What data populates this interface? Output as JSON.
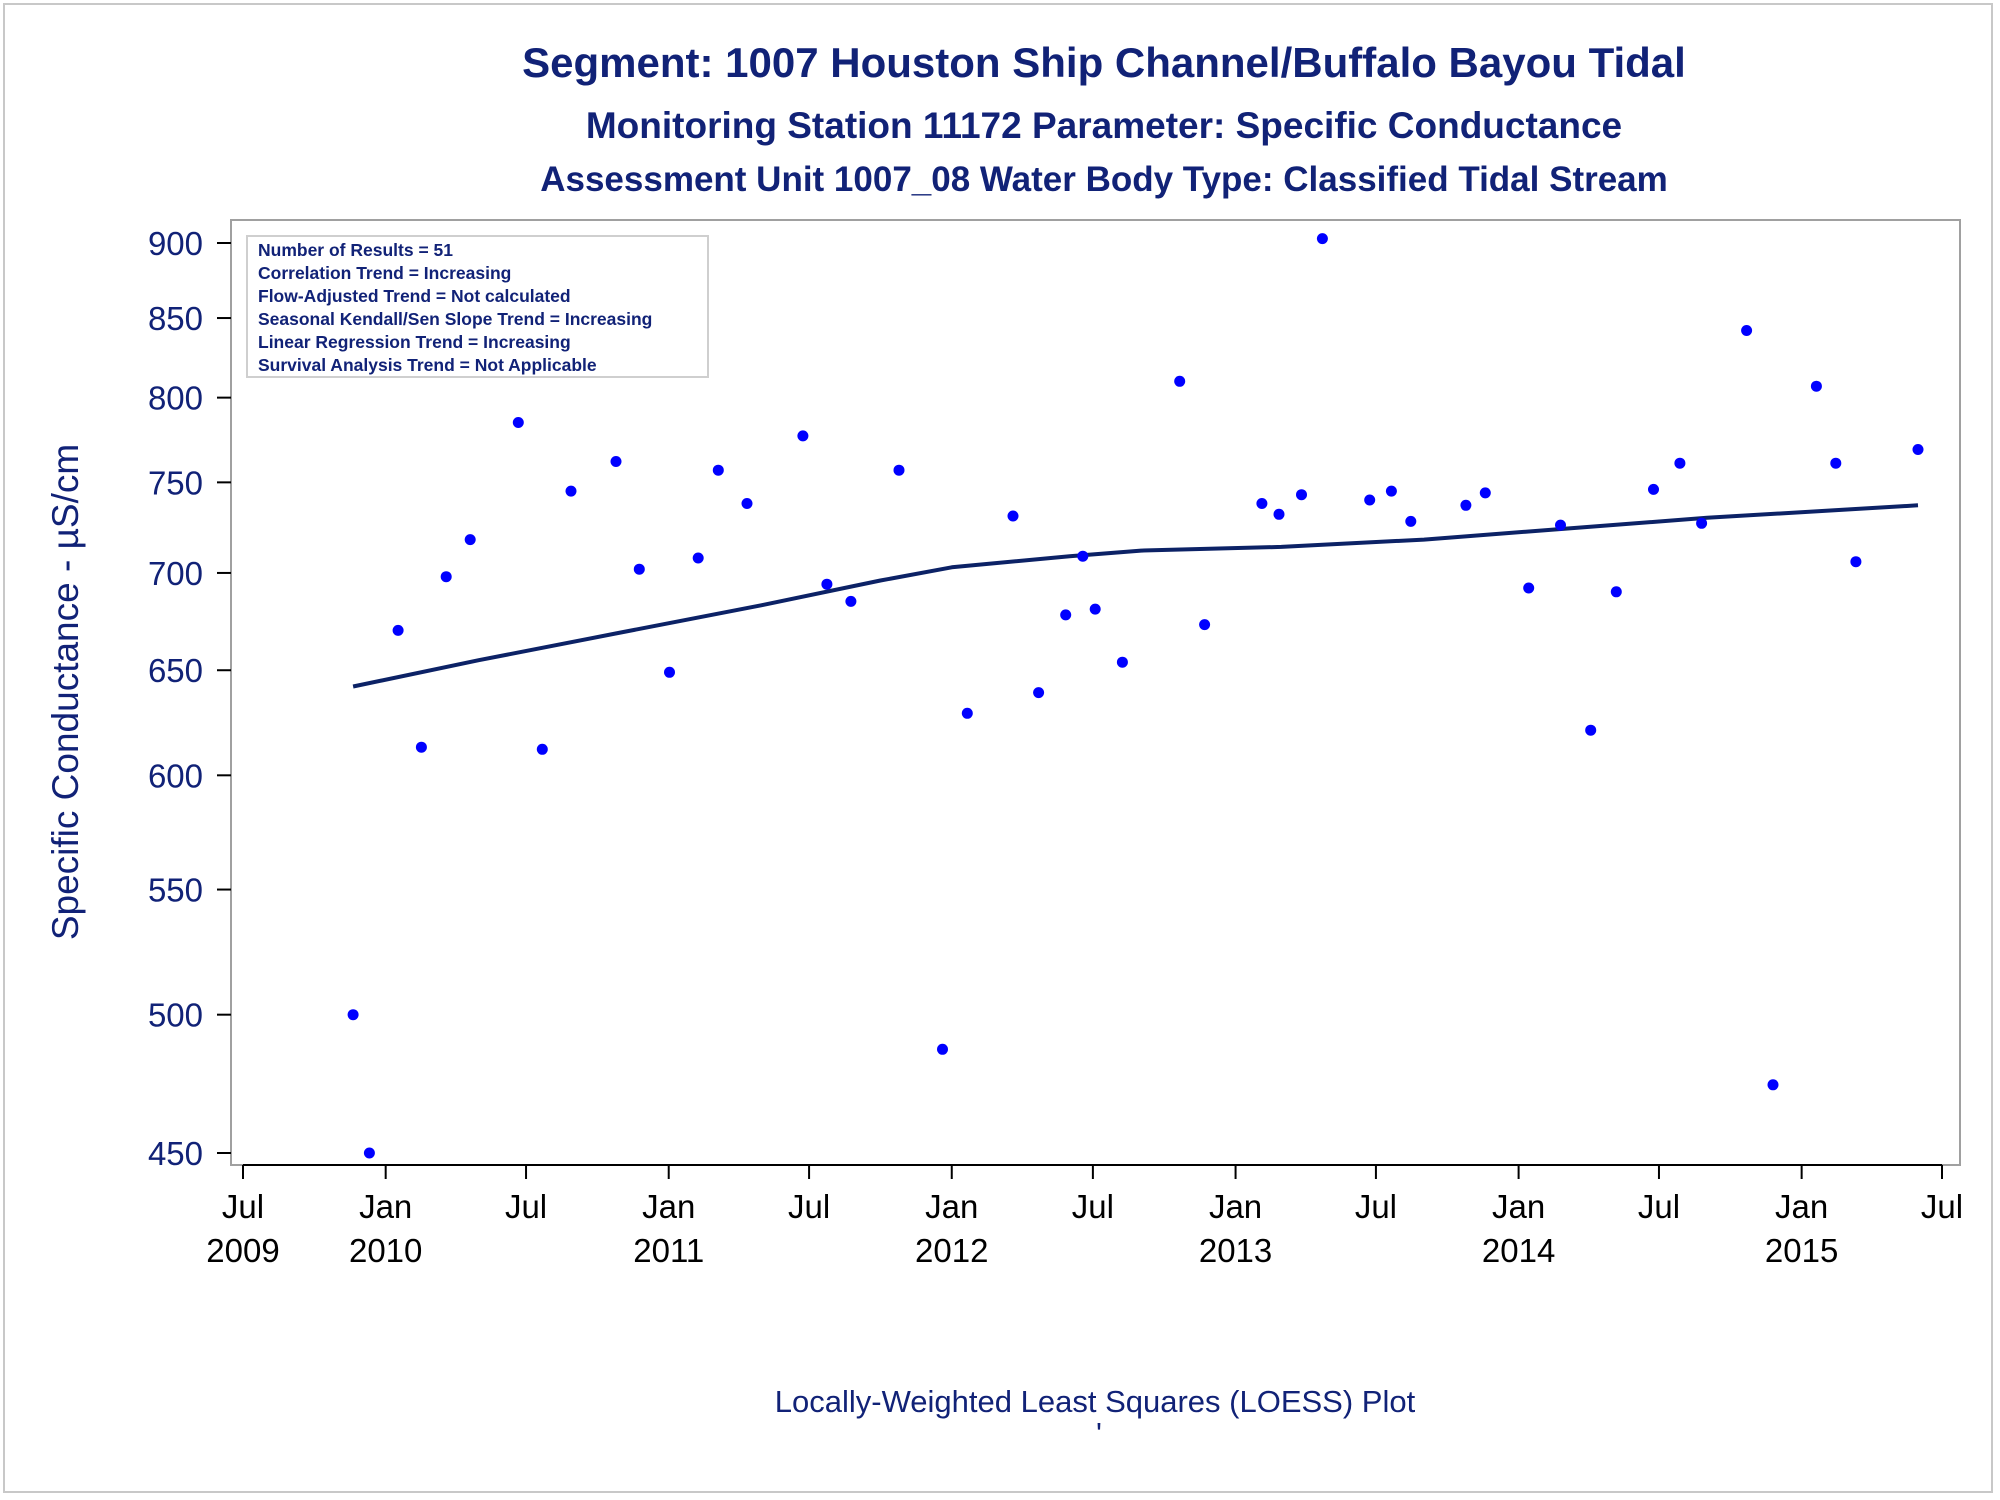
{
  "titles": {
    "line1": "Segment: 1007  Houston Ship Channel/Buffalo Bayou Tidal",
    "line2": "Monitoring Station 11172 Parameter: Specific Conductance",
    "line3": "Assessment Unit 1007_08   Water Body Type: Classified Tidal Stream"
  },
  "inset": [
    "Number of Results = 51",
    "Correlation Trend = Increasing",
    "Flow-Adjusted Trend = Not calculated",
    "Seasonal Kendall/Sen Slope Trend = Increasing",
    "Linear Regression Trend = Increasing",
    "Survival Analysis Trend = Not Applicable"
  ],
  "footnote": "Locally-Weighted Least Squares (LOESS) Plot",
  "footnote_mark": "'",
  "colors": {
    "text": "#112277",
    "points": "#0000ff",
    "loess": "#0c2266",
    "frame": "#a0a0a0"
  },
  "chart_data": {
    "type": "scatter",
    "title": "Segment: 1007  Houston Ship Channel/Buffalo Bayou Tidal",
    "ylabel": "Specific Conductance -  µS/cm",
    "xlabel": "",
    "y_scale": "log",
    "ylim": [
      443,
      920
    ],
    "xlim": [
      "2009-07-01",
      "2015-07-01"
    ],
    "y_ticks": [
      450,
      500,
      550,
      600,
      650,
      700,
      750,
      800,
      850,
      900
    ],
    "x_ticks": [
      {
        "date": "2009-07-01",
        "month": "Jul",
        "year": "2009"
      },
      {
        "date": "2010-01-01",
        "month": "Jan",
        "year": "2010"
      },
      {
        "date": "2010-07-01",
        "month": "Jul",
        "year": ""
      },
      {
        "date": "2011-01-01",
        "month": "Jan",
        "year": "2011"
      },
      {
        "date": "2011-07-01",
        "month": "Jul",
        "year": ""
      },
      {
        "date": "2012-01-01",
        "month": "Jan",
        "year": "2012"
      },
      {
        "date": "2012-07-01",
        "month": "Jul",
        "year": ""
      },
      {
        "date": "2013-01-01",
        "month": "Jan",
        "year": "2013"
      },
      {
        "date": "2013-07-01",
        "month": "Jul",
        "year": ""
      },
      {
        "date": "2014-01-01",
        "month": "Jan",
        "year": "2014"
      },
      {
        "date": "2014-07-01",
        "month": "Jul",
        "year": ""
      },
      {
        "date": "2015-01-01",
        "month": "Jan",
        "year": "2015"
      },
      {
        "date": "2015-07-01",
        "month": "Jul",
        "year": ""
      }
    ],
    "grid": false,
    "series": [
      {
        "type": "scatter",
        "points": [
          {
            "x": "2009-11-20",
            "y": 500
          },
          {
            "x": "2009-12-11",
            "y": 450
          },
          {
            "x": "2010-01-17",
            "y": 670
          },
          {
            "x": "2010-02-16",
            "y": 613
          },
          {
            "x": "2010-03-20",
            "y": 698
          },
          {
            "x": "2010-04-20",
            "y": 718
          },
          {
            "x": "2010-06-21",
            "y": 785
          },
          {
            "x": "2010-07-22",
            "y": 612
          },
          {
            "x": "2010-08-28",
            "y": 745
          },
          {
            "x": "2010-10-25",
            "y": 762
          },
          {
            "x": "2010-11-24",
            "y": 702
          },
          {
            "x": "2011-01-02",
            "y": 649
          },
          {
            "x": "2011-02-08",
            "y": 708
          },
          {
            "x": "2011-03-06",
            "y": 757
          },
          {
            "x": "2011-04-12",
            "y": 738
          },
          {
            "x": "2011-06-23",
            "y": 777
          },
          {
            "x": "2011-07-24",
            "y": 694
          },
          {
            "x": "2011-08-24",
            "y": 685
          },
          {
            "x": "2011-10-25",
            "y": 757
          },
          {
            "x": "2011-12-20",
            "y": 487
          },
          {
            "x": "2012-01-21",
            "y": 629
          },
          {
            "x": "2012-03-20",
            "y": 731
          },
          {
            "x": "2012-04-22",
            "y": 639
          },
          {
            "x": "2012-05-27",
            "y": 678
          },
          {
            "x": "2012-06-18",
            "y": 709
          },
          {
            "x": "2012-07-04",
            "y": 681
          },
          {
            "x": "2012-08-08",
            "y": 654
          },
          {
            "x": "2012-10-21",
            "y": 810
          },
          {
            "x": "2012-11-22",
            "y": 673
          },
          {
            "x": "2013-01-35",
            "y": 738
          },
          {
            "x": "2013-02-26",
            "y": 732
          },
          {
            "x": "2013-03-27",
            "y": 743
          },
          {
            "x": "2013-04-23",
            "y": 903
          },
          {
            "x": "2013-06-23",
            "y": 740
          },
          {
            "x": "2013-07-21",
            "y": 745
          },
          {
            "x": "2013-08-15",
            "y": 728
          },
          {
            "x": "2013-10-25",
            "y": 737
          },
          {
            "x": "2013-11-19",
            "y": 744
          },
          {
            "x": "2014-01-14",
            "y": 692
          },
          {
            "x": "2014-02-24",
            "y": 726
          },
          {
            "x": "2014-04-04",
            "y": 621
          },
          {
            "x": "2014-05-07",
            "y": 690
          },
          {
            "x": "2014-06-24",
            "y": 746
          },
          {
            "x": "2014-07-28",
            "y": 761
          },
          {
            "x": "2014-08-25",
            "y": 727
          },
          {
            "x": "2014-10-22",
            "y": 842
          },
          {
            "x": "2014-11-25",
            "y": 474
          },
          {
            "x": "2015-01-20",
            "y": 807
          },
          {
            "x": "2015-02-14",
            "y": 761
          },
          {
            "x": "2015-03-12",
            "y": 706
          },
          {
            "x": "2015-05-31",
            "y": 769
          }
        ]
      },
      {
        "type": "line",
        "points": [
          {
            "x": "2009-11-20",
            "y": 642
          },
          {
            "x": "2010-05-01",
            "y": 655
          },
          {
            "x": "2010-11-01",
            "y": 669
          },
          {
            "x": "2011-05-01",
            "y": 683
          },
          {
            "x": "2011-10-01",
            "y": 696
          },
          {
            "x": "2012-01-01",
            "y": 703
          },
          {
            "x": "2012-06-01",
            "y": 709
          },
          {
            "x": "2012-09-01",
            "y": 712
          },
          {
            "x": "2013-03-01",
            "y": 714
          },
          {
            "x": "2013-09-01",
            "y": 718
          },
          {
            "x": "2014-03-01",
            "y": 724
          },
          {
            "x": "2014-09-01",
            "y": 730
          },
          {
            "x": "2015-05-31",
            "y": 737
          }
        ]
      }
    ]
  }
}
